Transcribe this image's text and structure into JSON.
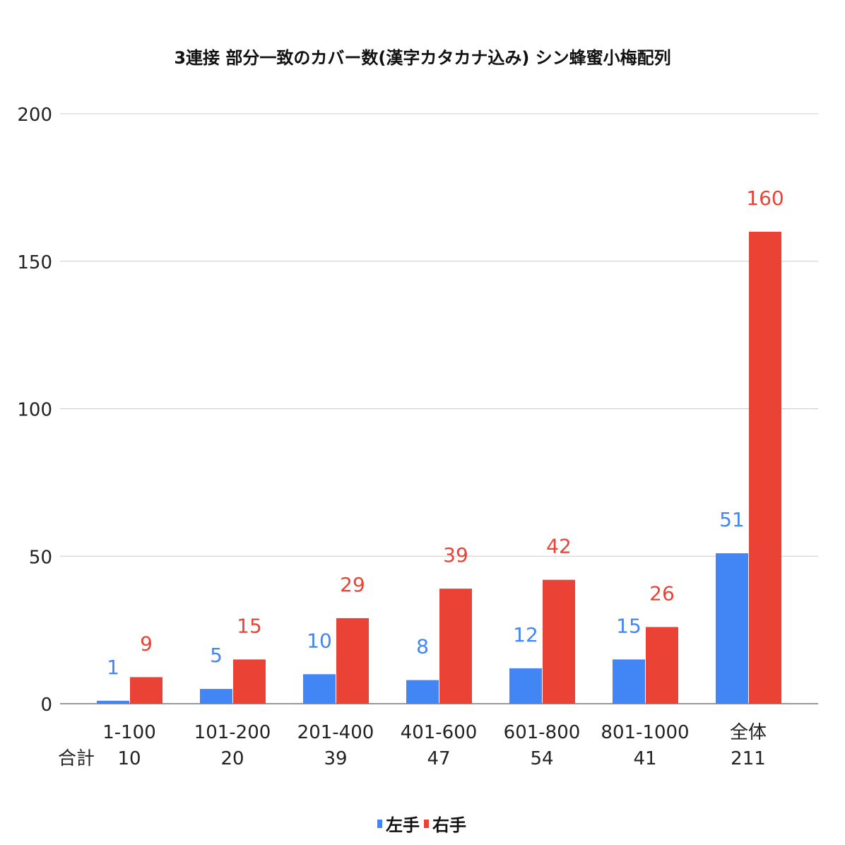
{
  "chart_data": {
    "type": "bar",
    "title": "3連接 部分一致のカバー数(漢字カタカナ込み) シン蜂蜜小梅配列",
    "categories": [
      "1-100",
      "101-200",
      "201-400",
      "401-600",
      "601-800",
      "801-1000",
      "全体"
    ],
    "totals_label": "合計",
    "totals": [
      "10",
      "20",
      "39",
      "47",
      "54",
      "41",
      "211"
    ],
    "series": [
      {
        "name": "左手",
        "values": [
          1,
          5,
          10,
          8,
          12,
          15,
          51
        ],
        "color": "#4285f4"
      },
      {
        "name": "右手",
        "values": [
          9,
          15,
          29,
          39,
          42,
          26,
          160
        ],
        "color": "#ea4335"
      }
    ],
    "xlabel": "",
    "ylabel": "",
    "ylim": [
      0,
      200
    ],
    "yticks": [
      0,
      50,
      100,
      150,
      200
    ],
    "grid": true,
    "legend_position": "bottom-center",
    "data_labels": true
  }
}
